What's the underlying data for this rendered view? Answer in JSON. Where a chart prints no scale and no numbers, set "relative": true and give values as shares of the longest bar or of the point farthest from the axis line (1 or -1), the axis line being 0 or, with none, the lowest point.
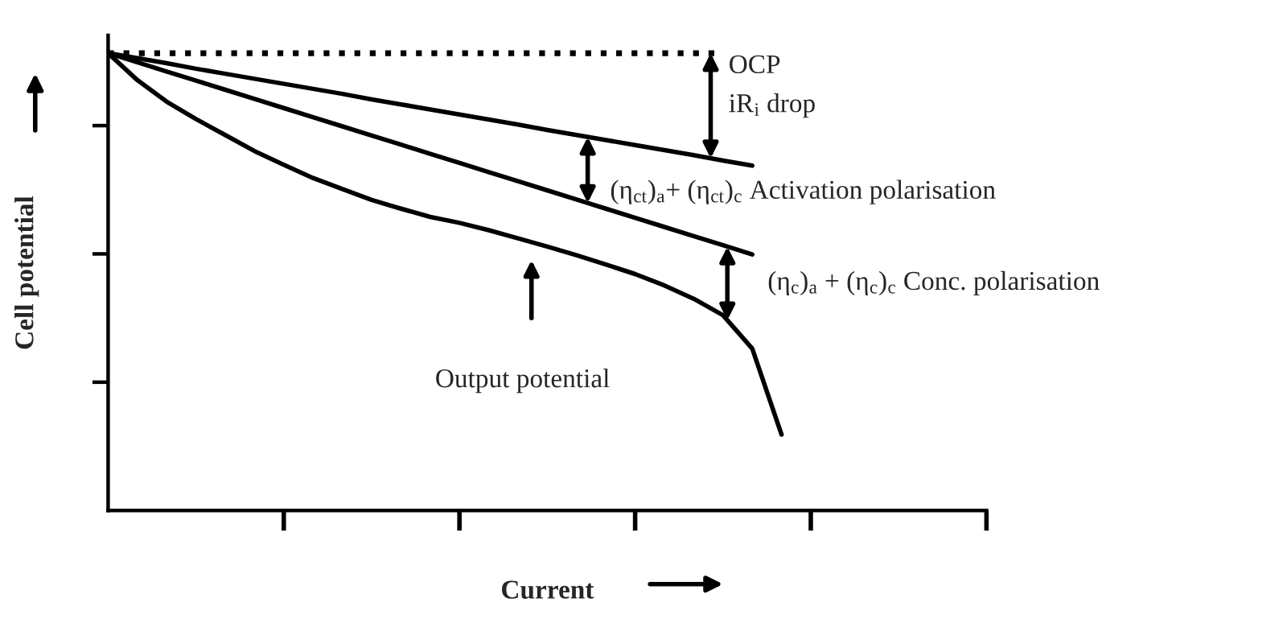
{
  "chart_data": {
    "type": "line",
    "relative": true,
    "xlabel": "Current",
    "ylabel": "Cell potential",
    "categories": [
      null,
      null,
      null,
      null,
      null,
      null,
      null,
      null,
      null,
      null,
      null,
      null,
      null,
      null,
      null,
      null,
      null,
      null,
      null,
      null,
      null,
      null,
      null,
      null,
      null,
      null,
      null,
      null,
      null,
      null,
      null
    ],
    "tick_labels": false,
    "legend": false,
    "series": [
      {
        "color": "#000000",
        "line_style": "dotted",
        "values": [
          1,
          1,
          1,
          1,
          1,
          1,
          1,
          1,
          1,
          1,
          1,
          1,
          1,
          1,
          1,
          1,
          1,
          1,
          1,
          1,
          1,
          1,
          null,
          null,
          null,
          null,
          null,
          null,
          null,
          null,
          null
        ]
      },
      {
        "color": "#000000",
        "line_style": "solid",
        "values": [
          1,
          0.989,
          0.978,
          0.966,
          0.955,
          0.944,
          0.933,
          0.922,
          0.911,
          0.899,
          0.888,
          0.877,
          0.866,
          0.855,
          0.844,
          0.832,
          0.821,
          0.81,
          0.799,
          0.788,
          0.777,
          0.765,
          0.754,
          null,
          null,
          null,
          null,
          null,
          null,
          null,
          null
        ]
      },
      {
        "color": "#000000",
        "line_style": "solid",
        "values": [
          1,
          0.98,
          0.96,
          0.94,
          0.92,
          0.9,
          0.88,
          0.86,
          0.84,
          0.82,
          0.8,
          0.78,
          0.76,
          0.74,
          0.72,
          0.7,
          0.68,
          0.66,
          0.64,
          0.62,
          0.6,
          0.58,
          0.56,
          null,
          null,
          null,
          null,
          null,
          null,
          null,
          null
        ]
      },
      {
        "color": "#000000",
        "line_style": "solid",
        "values": [
          1,
          0.941,
          0.894,
          0.856,
          0.821,
          0.786,
          0.756,
          0.727,
          0.703,
          0.679,
          0.66,
          0.642,
          0.629,
          0.613,
          0.595,
          0.577,
          0.558,
          0.538,
          0.517,
          0.492,
          0.463,
          0.427,
          0.354,
          0.166,
          null,
          null,
          null,
          null,
          null,
          null,
          null
        ]
      }
    ],
    "annotations": [
      "OCP",
      "iR$_{i}$ drop",
      "(η$_{ct}$)$_{a}$+ (η$_{ct}$)$_{c}$ Activation polarisation",
      "(η$_{c}$)$_{a}$ + (η$_{c}$)$_{c}$ Conc. polarisation",
      "Output potential"
    ]
  }
}
